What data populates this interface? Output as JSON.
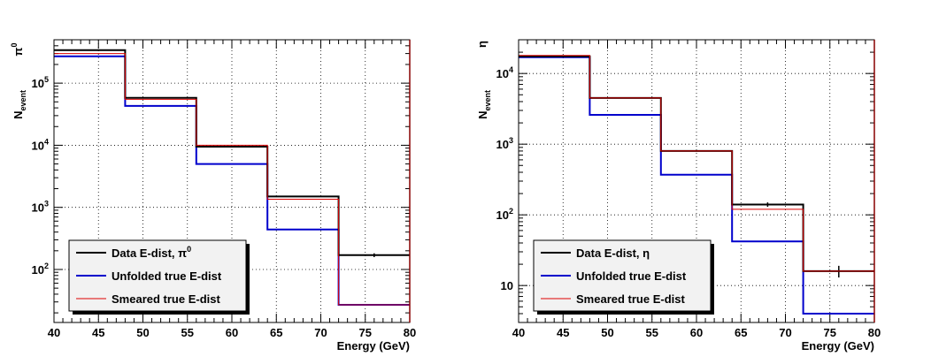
{
  "chart_data": [
    {
      "type": "histogram",
      "ylabel_main": "N",
      "ylabel_sub": "event",
      "particle": "π",
      "particle_sup": "0",
      "xlabel": "Energy (GeV)",
      "xlim": [
        40,
        80
      ],
      "ylim": [
        14,
        500000
      ],
      "yscale": "log",
      "grid": true,
      "legend_position": "bottom-left",
      "x_ticks": [
        40,
        45,
        50,
        55,
        60,
        65,
        70,
        75,
        80
      ],
      "y_ticks": [
        {
          "value": 100,
          "base": "10",
          "exp": "2"
        },
        {
          "value": 1000,
          "base": "10",
          "exp": "3"
        },
        {
          "value": 10000,
          "base": "10",
          "exp": "4"
        },
        {
          "value": 100000,
          "base": "10",
          "exp": "5"
        }
      ],
      "bin_edges": [
        40,
        48,
        56,
        64,
        72,
        80
      ],
      "series": [
        {
          "name": "Data E-dist, π",
          "name_sup": "0",
          "color": "#000000",
          "values": [
            340000,
            58000,
            9500,
            1500,
            170
          ],
          "errors": [
            0,
            0,
            0,
            0,
            12
          ]
        },
        {
          "name": "Unfolded true E-dist",
          "color": "#0000cc",
          "values": [
            270000,
            43000,
            5000,
            440,
            27
          ]
        },
        {
          "name": "Smeared true E-dist",
          "color": "#dd0000",
          "values": [
            300000,
            55000,
            10000,
            1350,
            27
          ]
        }
      ]
    },
    {
      "type": "histogram",
      "ylabel_main": "N",
      "ylabel_sub": "event",
      "particle": "η",
      "xlabel": "Energy (GeV)",
      "xlim": [
        40,
        80
      ],
      "ylim": [
        3,
        30000
      ],
      "yscale": "log",
      "grid": true,
      "legend_position": "bottom-left",
      "x_ticks": [
        40,
        45,
        50,
        55,
        60,
        65,
        70,
        75,
        80
      ],
      "y_ticks": [
        {
          "value": 10,
          "base": "10",
          "exp": ""
        },
        {
          "value": 100,
          "base": "10",
          "exp": "2"
        },
        {
          "value": 1000,
          "base": "10",
          "exp": "3"
        },
        {
          "value": 10000,
          "base": "10",
          "exp": "4"
        }
      ],
      "bin_edges": [
        40,
        48,
        56,
        64,
        72,
        80
      ],
      "series": [
        {
          "name": "Data E-dist, η",
          "color": "#000000",
          "values": [
            17500,
            4500,
            800,
            140,
            16
          ],
          "errors": [
            0,
            0,
            0,
            10,
            3
          ]
        },
        {
          "name": "Unfolded true E-dist",
          "color": "#0000cc",
          "values": [
            17000,
            2600,
            370,
            42,
            4
          ]
        },
        {
          "name": "Smeared true E-dist",
          "color": "#dd0000",
          "values": [
            18000,
            4500,
            800,
            120,
            16
          ]
        }
      ]
    }
  ]
}
